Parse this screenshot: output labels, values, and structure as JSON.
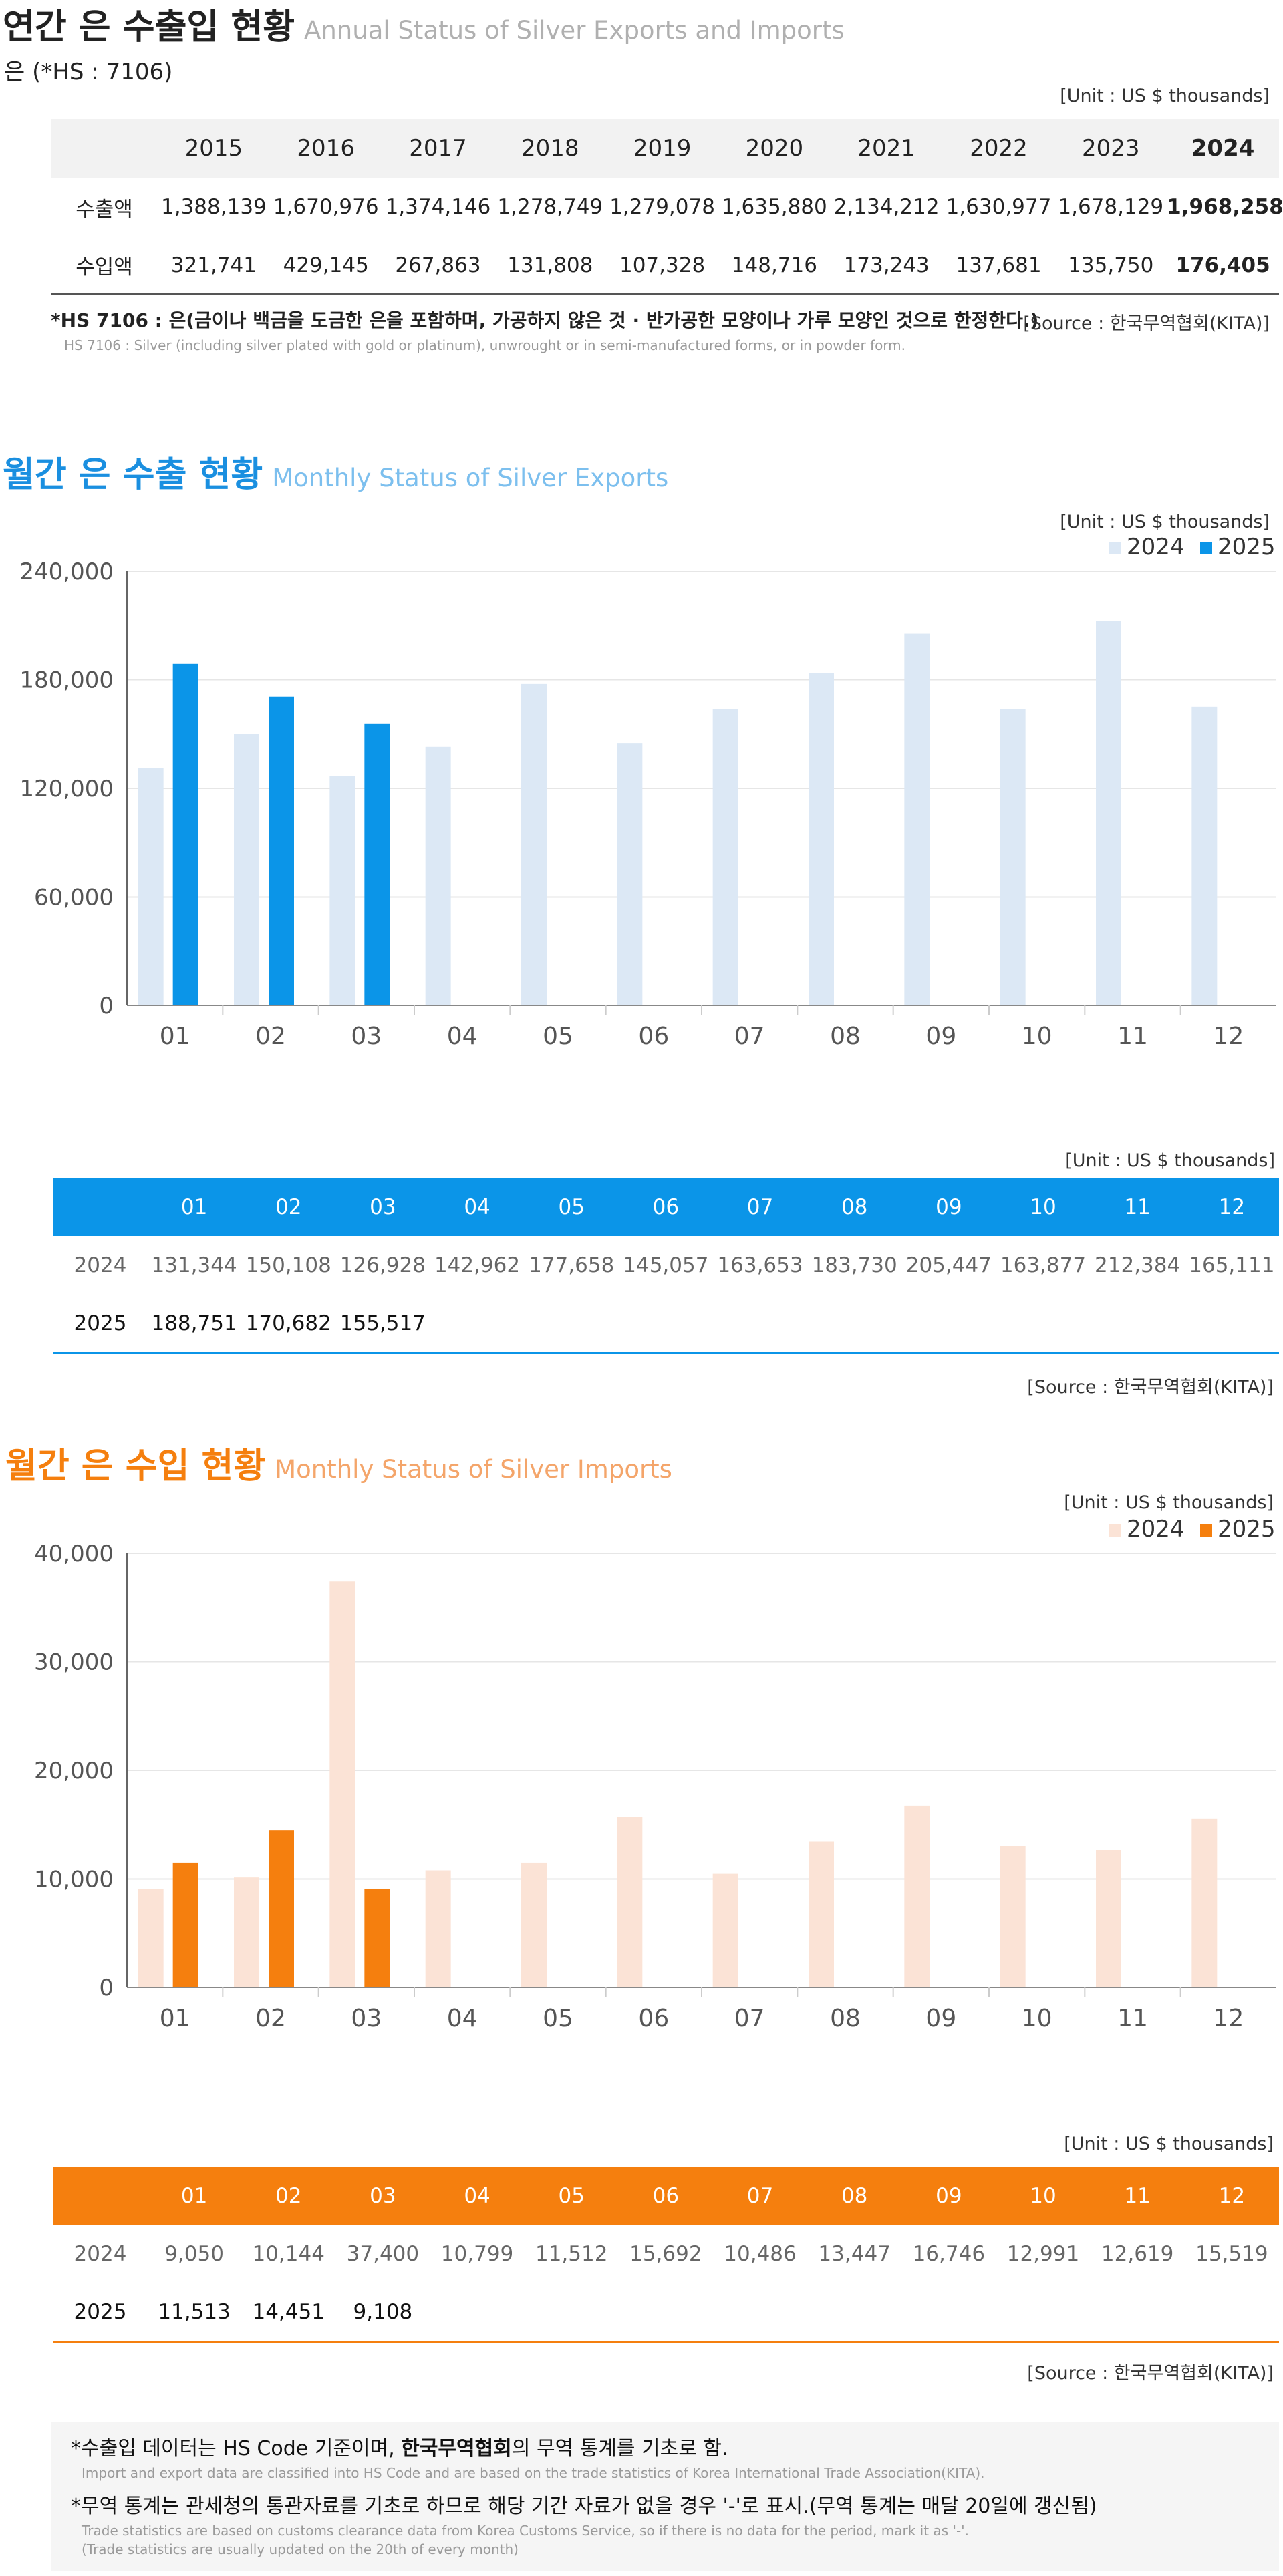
{
  "annual": {
    "title_ko": "연간 은 수출입 현황",
    "title_en": "Annual Status of Silver Exports and Imports",
    "hs_label": "은 (*HS : 7106)",
    "unit": "[Unit : US $ thousands]",
    "years": [
      "2015",
      "2016",
      "2017",
      "2018",
      "2019",
      "2020",
      "2021",
      "2022",
      "2023",
      "2024"
    ],
    "rows": [
      {
        "label": "수출액",
        "values": [
          "1,388,139",
          "1,670,976",
          "1,374,146",
          "1,278,749",
          "1,279,078",
          "1,635,880",
          "2,134,212",
          "1,630,977",
          "1,678,129",
          "1,968,258"
        ]
      },
      {
        "label": "수입액",
        "values": [
          "321,741",
          "429,145",
          "267,863",
          "131,808",
          "107,328",
          "148,716",
          "173,243",
          "137,681",
          "135,750",
          "176,405"
        ]
      }
    ],
    "footnote_ko": "*HS 7106 : 은(금이나 백금을 도금한 은을 포함하며, 가공하지 않은 것 · 반가공한 모양이나 가루 모양인 것으로 한정한다.)",
    "footnote_en": "HS 7106 : Silver (including silver plated with gold or platinum), unwrought or in semi-manufactured forms, or in powder form.",
    "source": "[Source : 한국무역협회(KITA)]"
  },
  "export": {
    "title_ko": "월간 은 수출 현황",
    "title_en": "Monthly Status of Silver Exports",
    "unit": "[Unit : US $ thousands]",
    "table_unit": "[Unit : US $ thousands]",
    "source": "[Source : 한국무역협회(KITA)]",
    "color_2024": "#dce8f5",
    "color_2025": "#0b95e8",
    "table_rows": [
      {
        "label": "2024",
        "values": [
          "131,344",
          "150,108",
          "126,928",
          "142,962",
          "177,658",
          "145,057",
          "163,653",
          "183,730",
          "205,447",
          "163,877",
          "212,384",
          "165,111"
        ]
      },
      {
        "label": "2025",
        "values": [
          "188,751",
          "170,682",
          "155,517",
          "",
          "",
          "",
          "",
          "",
          "",
          "",
          "",
          ""
        ]
      }
    ]
  },
  "import": {
    "title_ko": "월간 은 수입 현황",
    "title_en": "Monthly Status of Silver Imports",
    "unit": "[Unit : US $ thousands]",
    "table_unit": "[Unit : US $ thousands]",
    "source": "[Source : 한국무역협회(KITA)]",
    "color_2024": "#fbe3d6",
    "color_2025": "#f57f0e",
    "table_rows": [
      {
        "label": "2024",
        "values": [
          "9,050",
          "10,144",
          "37,400",
          "10,799",
          "11,512",
          "15,692",
          "10,486",
          "13,447",
          "16,746",
          "12,991",
          "12,619",
          "15,519"
        ]
      },
      {
        "label": "2025",
        "values": [
          "11,513",
          "14,451",
          "9,108",
          "",
          "",
          "",
          "",
          "",
          "",
          "",
          "",
          ""
        ]
      }
    ]
  },
  "notes": [
    {
      "ko_pre": "*수출입 데이터는 HS Code 기준이며, ",
      "ko_bold": "한국무역협회",
      "ko_post": "의 무역 통계를 기초로 함.",
      "en": "Import and export data are classified into HS Code and are based on the trade statistics of Korea International  Trade Association(KITA)."
    },
    {
      "ko_pre": "*무역 통계는 관세청의  통관자료를 기초로 하므로 해당 기간 자료가 없을 경우 '-'로 표시.(무역 통계는 매달 20일에 갱신됨)",
      "ko_bold": "",
      "ko_post": "",
      "en": "Trade statistics are based on customs clearance data from Korea Customs Service, so if there is no data for the period, mark it as '-'.",
      "en2": "(Trade statistics are usually updated on the 20th of every month)"
    }
  ],
  "chart_data": [
    {
      "type": "bar",
      "categories": [
        "01",
        "02",
        "03",
        "04",
        "05",
        "06",
        "07",
        "08",
        "09",
        "10",
        "11",
        "12"
      ],
      "series": [
        {
          "name": "2024",
          "values": [
            131344,
            150108,
            126928,
            142962,
            177658,
            145057,
            163653,
            183730,
            205447,
            163877,
            212384,
            165111
          ]
        },
        {
          "name": "2025",
          "values": [
            188751,
            170682,
            155517,
            null,
            null,
            null,
            null,
            null,
            null,
            null,
            null,
            null
          ]
        }
      ],
      "ylim": [
        0,
        240000
      ],
      "yticks": [
        0,
        60000,
        120000,
        180000,
        240000
      ],
      "ytick_labels": [
        "0",
        "60,000",
        "120,000",
        "180,000",
        "240,000"
      ],
      "legend": "top-right",
      "grid": true
    },
    {
      "type": "bar",
      "categories": [
        "01",
        "02",
        "03",
        "04",
        "05",
        "06",
        "07",
        "08",
        "09",
        "10",
        "11",
        "12"
      ],
      "series": [
        {
          "name": "2024",
          "values": [
            9050,
            10144,
            37400,
            10799,
            11512,
            15692,
            10486,
            13447,
            16746,
            12991,
            12619,
            15519
          ]
        },
        {
          "name": "2025",
          "values": [
            11513,
            14451,
            9108,
            null,
            null,
            null,
            null,
            null,
            null,
            null,
            null,
            null
          ]
        }
      ],
      "ylim": [
        0,
        40000
      ],
      "yticks": [
        0,
        10000,
        20000,
        30000,
        40000
      ],
      "ytick_labels": [
        "0",
        "10,000",
        "20,000",
        "30,000",
        "40,000"
      ],
      "legend": "top-right",
      "grid": true
    }
  ]
}
